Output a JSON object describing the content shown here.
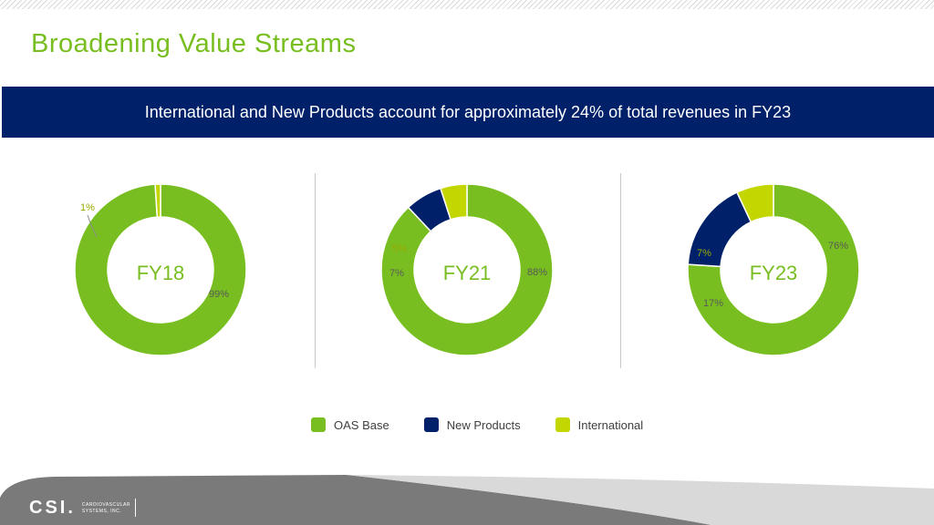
{
  "title": "Broadening Value Streams",
  "banner": "International and New Products account for approximately 24% of total revenues in FY23",
  "colors": {
    "oas_base": "#78be20",
    "new_products": "#002169",
    "international": "#c4d600",
    "title": "#78be20",
    "banner_bg": "#002169"
  },
  "chart_data": [
    {
      "type": "pie",
      "center_label": "FY18",
      "slices": [
        {
          "name": "OAS Base",
          "value": 99,
          "label": "99%"
        },
        {
          "name": "New Products",
          "value": 0,
          "label": ""
        },
        {
          "name": "International",
          "value": 1,
          "label": "1%"
        }
      ]
    },
    {
      "type": "pie",
      "center_label": "FY21",
      "slices": [
        {
          "name": "OAS Base",
          "value": 88,
          "label": "88%"
        },
        {
          "name": "New Products",
          "value": 7,
          "label": "7%"
        },
        {
          "name": "International",
          "value": 5,
          "label": "5%"
        }
      ]
    },
    {
      "type": "pie",
      "center_label": "FY23",
      "slices": [
        {
          "name": "OAS Base",
          "value": 76,
          "label": "76%"
        },
        {
          "name": "New Products",
          "value": 17,
          "label": "17%"
        },
        {
          "name": "International",
          "value": 7,
          "label": "7%"
        }
      ]
    }
  ],
  "legend": [
    {
      "label": "OAS Base",
      "color": "#78be20"
    },
    {
      "label": "New Products",
      "color": "#002169"
    },
    {
      "label": "International",
      "color": "#c4d600"
    }
  ],
  "footer": {
    "logo_mark": "CSI.",
    "logo_line1": "CARDIOVASCULAR",
    "logo_line2": "SYSTEMS, INC."
  }
}
